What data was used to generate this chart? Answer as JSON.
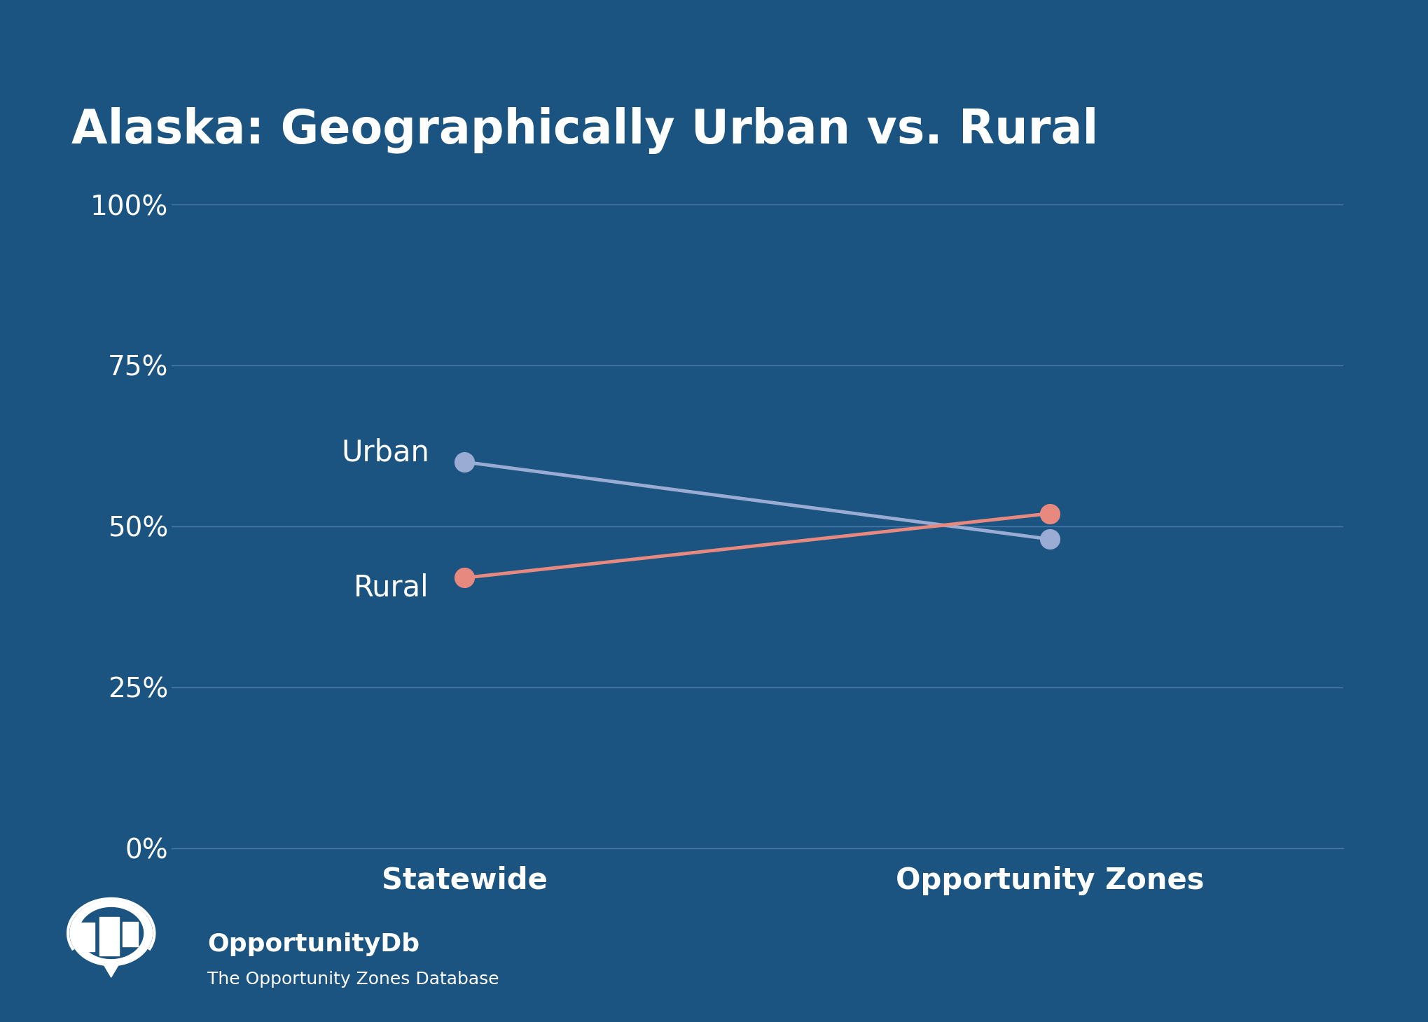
{
  "title": "Alaska: Geographically Urban vs. Rural",
  "background_color": "#1b5480",
  "title_color": "#ffffff",
  "title_fontsize": 48,
  "categories": [
    "Statewide",
    "Opportunity Zones"
  ],
  "urban_values": [
    0.6,
    0.48
  ],
  "rural_values": [
    0.42,
    0.52
  ],
  "urban_color": "#9aacd4",
  "rural_color": "#e8897f",
  "urban_label": "Urban",
  "rural_label": "Rural",
  "label_color": "#ffffff",
  "label_fontsize": 30,
  "yticks": [
    0.0,
    0.25,
    0.5,
    0.75,
    1.0
  ],
  "ytick_labels": [
    "0%",
    "25%",
    "50%",
    "75%",
    "100%"
  ],
  "grid_color": "#4a7aaa",
  "tick_color": "#ffffff",
  "tick_fontsize": 28,
  "xtick_fontsize": 30,
  "line_width": 3.5,
  "marker_size": 20,
  "logo_text_main": "OpportunityDb",
  "logo_text_sub": "The Opportunity Zones Database",
  "logo_fontsize_main": 26,
  "logo_fontsize_sub": 18
}
